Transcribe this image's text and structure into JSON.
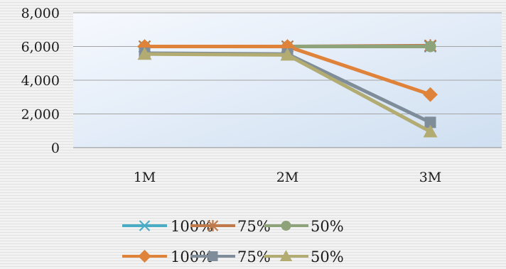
{
  "chart_data": {
    "type": "line",
    "categories": [
      "1M",
      "2M",
      "3M"
    ],
    "ylim": [
      0,
      8000
    ],
    "yticks": [
      0,
      2000,
      4000,
      6000,
      8000
    ],
    "ytick_labels": [
      "0",
      "2,000",
      "4,000",
      "6,000",
      "8,000"
    ],
    "grid": true,
    "legend_position": "bottom",
    "series": [
      {
        "name": "100%",
        "values": [
          6000,
          6000,
          6000
        ],
        "color": "#4bacc6",
        "marker": "x"
      },
      {
        "name": "75%",
        "values": [
          6000,
          6000,
          6050
        ],
        "color": "#c0794a",
        "marker": "star"
      },
      {
        "name": "50%",
        "values": [
          6000,
          6000,
          6000
        ],
        "color": "#8fa37a",
        "marker": "circle"
      },
      {
        "name": "100%",
        "values": [
          6000,
          6000,
          3150
        ],
        "color": "#e0833a",
        "marker": "diamond"
      },
      {
        "name": "75%",
        "values": [
          5600,
          5550,
          1500
        ],
        "color": "#7f8c99",
        "marker": "square"
      },
      {
        "name": "50%",
        "values": [
          5550,
          5500,
          950
        ],
        "color": "#b2ab72",
        "marker": "triangle"
      }
    ]
  }
}
